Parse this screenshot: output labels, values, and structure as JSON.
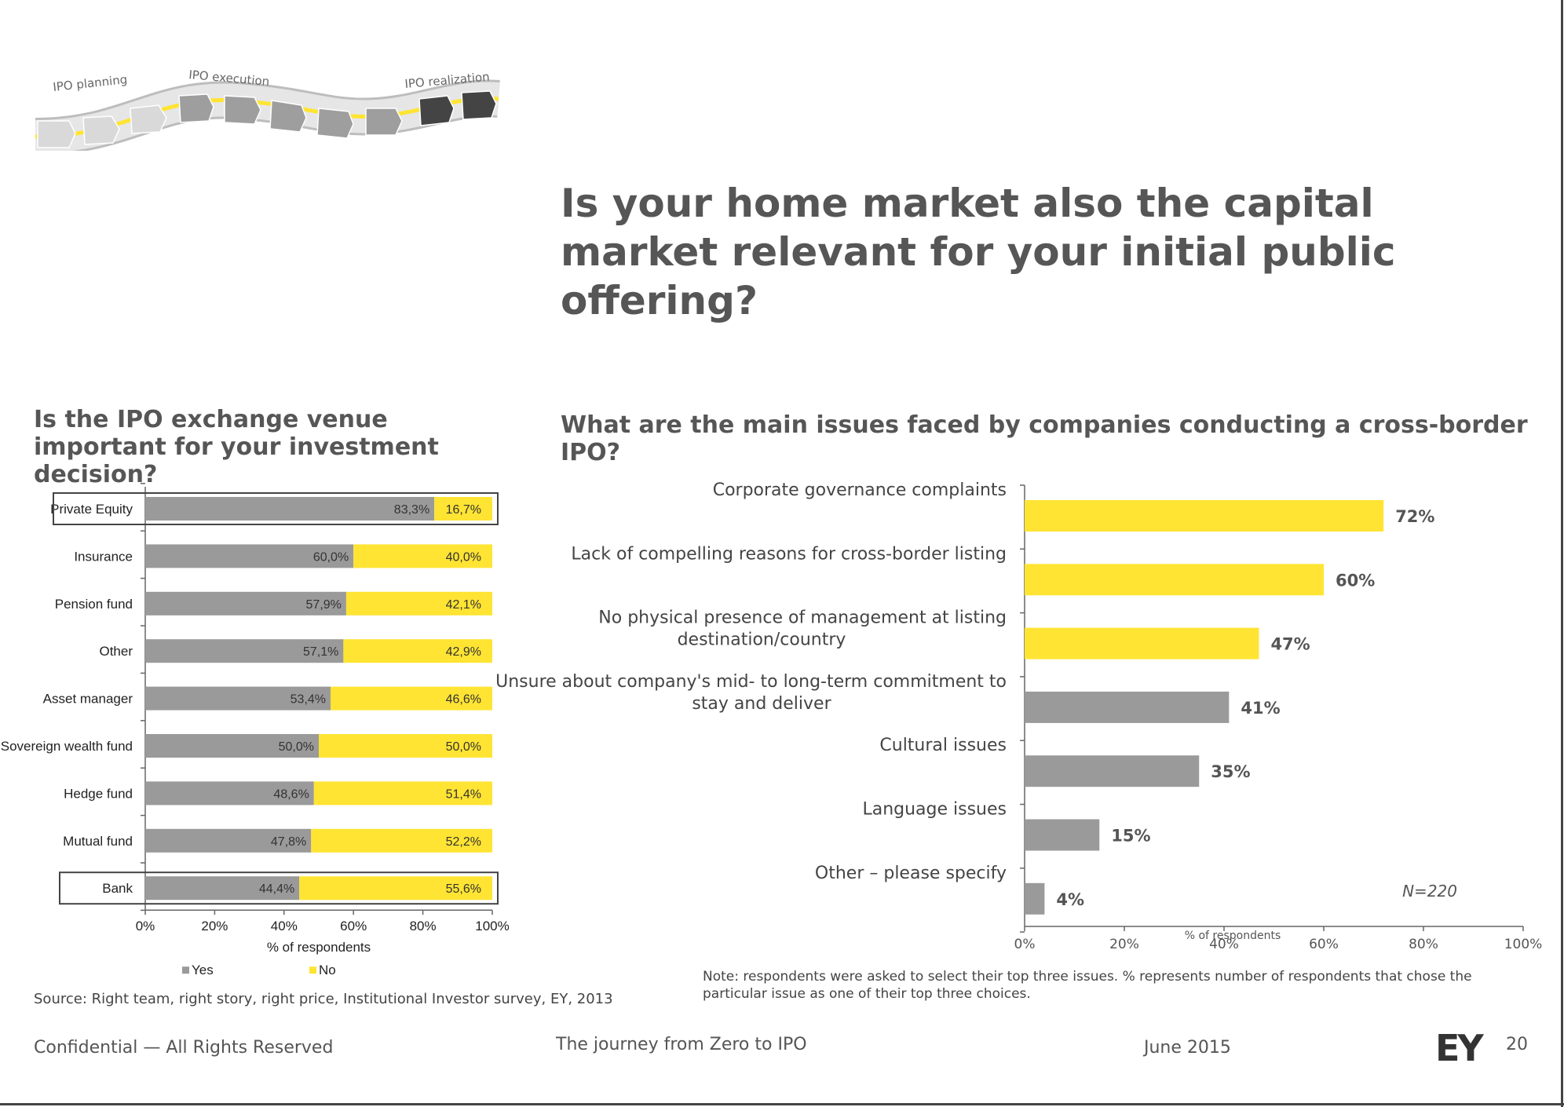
{
  "journey": {
    "stages": [
      "IPO planning",
      "IPO execution",
      "IPO realization"
    ]
  },
  "title": "Is your home market also the capital market relevant for your initial public offering?",
  "left_title": "Is the IPO exchange venue important for your investment decision?",
  "right_title": "What are the main issues faced by companies conducting a cross-border IPO?",
  "colors": {
    "gray": "#9a9a9a",
    "yellow": "#ffe433",
    "text": "#333333"
  },
  "chart_data": [
    {
      "type": "bar",
      "orientation": "horizontal",
      "stacked": true,
      "categories": [
        "Private Equity",
        "Insurance",
        "Pension fund",
        "Other",
        "Asset manager",
        "Sovereign wealth fund",
        "Hedge fund",
        "Mutual fund",
        "Bank"
      ],
      "series": [
        {
          "name": "Yes",
          "values": [
            83.3,
            60.0,
            57.9,
            57.1,
            53.4,
            50.0,
            48.6,
            47.8,
            44.4
          ],
          "labels": [
            "83,3%",
            "60,0%",
            "57,9%",
            "57,1%",
            "53,4%",
            "50,0%",
            "48,6%",
            "47,8%",
            "44,4%"
          ]
        },
        {
          "name": "No",
          "values": [
            16.7,
            40.0,
            42.1,
            42.9,
            46.6,
            50.0,
            51.4,
            52.2,
            55.6
          ],
          "labels": [
            "16,7%",
            "40,0%",
            "42,1%",
            "42,9%",
            "46,6%",
            "50,0%",
            "51,4%",
            "52,2%",
            "55,6%"
          ]
        }
      ],
      "highlighted": [
        "Private Equity",
        "Bank"
      ],
      "xlabel": "% of respondents",
      "xlim": [
        0,
        100
      ],
      "xticks": [
        "0%",
        "20%",
        "40%",
        "60%",
        "80%",
        "100%"
      ],
      "legend": "bottom"
    },
    {
      "type": "bar",
      "orientation": "horizontal",
      "categories": [
        [
          "Corporate governance complaints"
        ],
        [
          "Lack of compelling reasons for cross-border listing"
        ],
        [
          "No physical presence of management at listing",
          "destination/country"
        ],
        [
          "Unsure about company's mid- to long-term commitment to",
          "stay and deliver"
        ],
        [
          "Cultural issues"
        ],
        [
          "Language issues"
        ],
        [
          "Other – please specify"
        ]
      ],
      "values": [
        72,
        60,
        47,
        41,
        35,
        15,
        4
      ],
      "labels": [
        "72%",
        "60%",
        "47%",
        "41%",
        "35%",
        "15%",
        "4%"
      ],
      "highlight_count": 3,
      "xlabel": "% of respondents",
      "xlim": [
        0,
        100
      ],
      "xticks": [
        "0%",
        "20%",
        "40%",
        "60%",
        "80%",
        "100%"
      ],
      "annotation": "N=220"
    }
  ],
  "source": "Source: Right team, right story, right price, Institutional Investor survey, EY, 2013",
  "note": "Note: respondents were asked to select their top three issues. % represents number of respondents that chose the particular issue as one of their top three choices.",
  "footer": {
    "confidential": "Confidential — All Rights Reserved",
    "journey": "The journey from Zero to IPO",
    "date": "June 2015",
    "logo": "EY",
    "page": "20"
  }
}
